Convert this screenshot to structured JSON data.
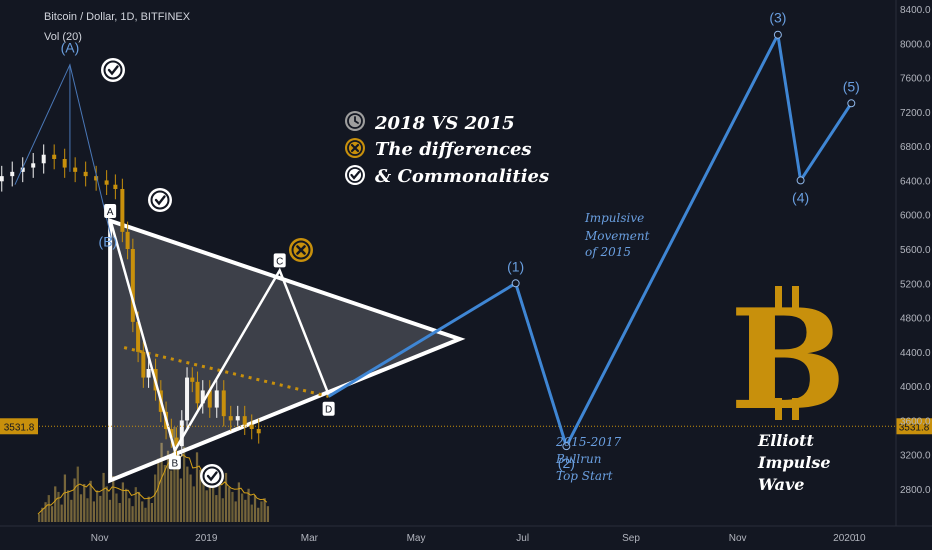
{
  "header": {
    "title": "Bitcoin / Dollar, 1D, BITFINEX",
    "indicator": "Vol (20)"
  },
  "chart_data": {
    "type": "line",
    "y_axis": {
      "ticks": [
        8400,
        8000,
        7600,
        7200,
        6800,
        6400,
        6000,
        5600,
        5200,
        4800,
        4400,
        4000,
        3600,
        3200,
        2800
      ],
      "tick_labels": [
        "8400.0",
        "8000.0",
        "7600.0",
        "7200.0",
        "6800.0",
        "6400.0",
        "6000.0",
        "5600.0",
        "5200.0",
        "4800.0",
        "4400.0",
        "4000.0",
        "3600.0",
        "3200.0",
        "2800.0"
      ],
      "range": [
        2500,
        8600
      ]
    },
    "x_axis": {
      "tick_labels": [
        "Nov",
        "2019",
        "Mar",
        "May",
        "Jul",
        "Sep",
        "Nov",
        "2020",
        "10"
      ],
      "tick_dates": [
        "2018-11-01",
        "2019-01-01",
        "2019-03-01",
        "2019-05-01",
        "2019-07-01",
        "2019-09-01",
        "2019-11-01",
        "2020-01-01",
        "2020-01-10"
      ],
      "range": [
        "2018-09-05",
        "2020-01-30"
      ]
    },
    "current_price": {
      "value": 3531.8,
      "label": "3531.8"
    },
    "price_series": {
      "name": "BTC price (candles)",
      "x": [
        "2018-09-06",
        "2018-09-12",
        "2018-09-18",
        "2018-09-24",
        "2018-09-30",
        "2018-10-06",
        "2018-10-12",
        "2018-10-18",
        "2018-10-24",
        "2018-10-30",
        "2018-11-05",
        "2018-11-10",
        "2018-11-14",
        "2018-11-17",
        "2018-11-20",
        "2018-11-23",
        "2018-11-26",
        "2018-11-29",
        "2018-12-03",
        "2018-12-06",
        "2018-12-09",
        "2018-12-12",
        "2018-12-15",
        "2018-12-18",
        "2018-12-21",
        "2018-12-24",
        "2018-12-27",
        "2018-12-30",
        "2019-01-03",
        "2019-01-07",
        "2019-01-11",
        "2019-01-15",
        "2019-01-19",
        "2019-01-23",
        "2019-01-27",
        "2019-01-31"
      ],
      "y": [
        6450,
        6500,
        6550,
        6600,
        6700,
        6650,
        6550,
        6500,
        6450,
        6400,
        6350,
        6300,
        5800,
        5600,
        4750,
        4400,
        4100,
        4200,
        3950,
        3700,
        3500,
        3400,
        3300,
        3600,
        4100,
        4050,
        3800,
        3950,
        3750,
        3950,
        3650,
        3600,
        3650,
        3550,
        3500,
        3450
      ]
    },
    "wave_path": {
      "name": "Impulsive Movement of 2015",
      "x": [
        "2019-03-12",
        "2019-06-27",
        "2019-07-26",
        "2019-11-24",
        "2019-12-07",
        "2020-01-05"
      ],
      "y": [
        3880,
        5200,
        3300,
        8100,
        6400,
        7300
      ],
      "labels": [
        "D",
        "(1)",
        "(2)",
        "(3)",
        "(4)",
        "(5)"
      ]
    },
    "abcd_points": [
      {
        "label": "(A)",
        "x": "2018-10-15",
        "y": 7750
      },
      {
        "label": "(B)",
        "x": "2018-11-08",
        "y": 5700
      },
      {
        "label": "A",
        "x": "2018-11-07",
        "y": 5950
      },
      {
        "label": "B",
        "x": "2018-12-14",
        "y": 3250
      },
      {
        "label": "C",
        "x": "2019-02-12",
        "y": 5350
      },
      {
        "label": "D",
        "x": "2019-03-12",
        "y": 3900
      }
    ],
    "triangle": {
      "x": [
        "2018-11-07",
        "2019-05-26",
        "2018-11-07"
      ],
      "y": [
        5930,
        4550,
        2900
      ]
    },
    "dotted_trend": {
      "x": [
        "2018-11-15",
        "2019-03-12"
      ],
      "y": [
        4450,
        3880
      ]
    },
    "volume_bars": [
      10,
      18,
      25,
      34,
      20,
      45,
      38,
      22,
      60,
      40,
      28,
      55,
      70,
      35,
      48,
      30,
      52,
      26,
      40,
      33,
      62,
      45,
      28,
      58,
      36,
      24,
      50,
      42,
      30,
      20,
      44,
      38,
      26,
      18,
      32,
      24,
      60,
      80,
      100,
      72,
      90,
      65,
      120,
      85,
      55,
      95,
      70,
      60,
      45,
      88,
      66,
      52,
      40,
      72,
      58,
      34,
      48,
      30,
      62,
      44,
      38,
      26,
      50,
      36,
      28,
      42,
      22,
      34,
      18,
      26,
      30,
      20
    ],
    "annotations": {
      "impulsive": [
        "Impulsive",
        "Movement",
        "of 2015"
      ],
      "bullrun": [
        "2015-2017",
        "Bullrun",
        "Top Start"
      ],
      "elliott": [
        "Elliott",
        "Impulse",
        "Wave"
      ]
    }
  },
  "legend": {
    "items": [
      {
        "label": "2018 VS 2015",
        "icon": "clock-icon",
        "color": "#9e9e9e"
      },
      {
        "label": "The differences",
        "icon": "x-mark-icon",
        "color": "#c8900c"
      },
      {
        "label": "& Commonalities",
        "icon": "check-icon",
        "color": "#ffffff"
      }
    ]
  },
  "colors": {
    "background": "#131722",
    "wave": "#3f86d4",
    "triangle": "#ffffff",
    "bitcoin": "#c8900c",
    "current_price": "#c8900c",
    "candle_up": "#f5f5f5",
    "candle_down": "#c8900c",
    "axis_text": "#b2b5be",
    "label_blue": "#6a9fe0"
  }
}
